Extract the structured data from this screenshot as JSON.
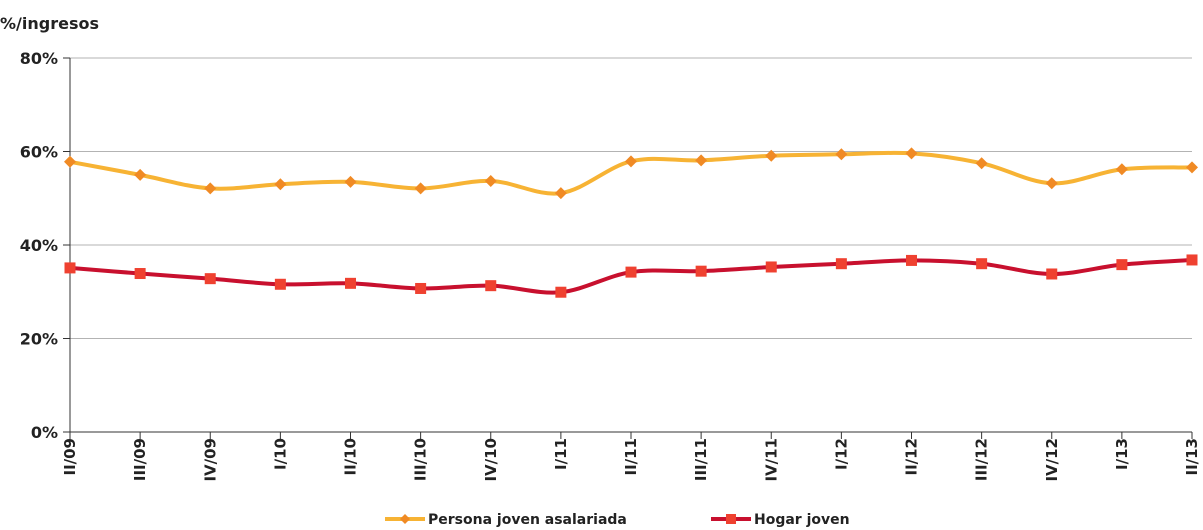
{
  "chart_data": {
    "type": "line",
    "ylabel": "%/ingresos",
    "ylim": [
      0,
      80
    ],
    "yticks": [
      0,
      20,
      40,
      60,
      80
    ],
    "ytick_labels": [
      "0%",
      "20%",
      "40%",
      "60%",
      "80%"
    ],
    "categories": [
      "II/09",
      "III/09",
      "IV/09",
      "I/10",
      "II/10",
      "III/10",
      "IV/10",
      "I/11",
      "II/11",
      "III/11",
      "IV/11",
      "I/12",
      "II/12",
      "III/12",
      "IV/12",
      "I/13",
      "II/13"
    ],
    "grid": true,
    "legend_position": "bottom",
    "series": [
      {
        "name": "Persona joven asalariada",
        "color": "#F7B334",
        "marker_color": "#F08A24",
        "marker": "diamond",
        "values": [
          57.8,
          55.0,
          52.1,
          53.0,
          53.5,
          52.1,
          53.7,
          51.1,
          57.9,
          58.1,
          59.1,
          59.4,
          59.6,
          57.5,
          53.2,
          56.2,
          56.6
        ]
      },
      {
        "name": "Hogar joven",
        "color": "#C8102E",
        "marker_color": "#EF4130",
        "marker": "square",
        "values": [
          35.1,
          33.9,
          32.8,
          31.6,
          31.8,
          30.7,
          31.3,
          29.9,
          34.2,
          34.4,
          35.3,
          36.0,
          36.7,
          36.0,
          33.8,
          35.8,
          36.8
        ]
      }
    ]
  }
}
